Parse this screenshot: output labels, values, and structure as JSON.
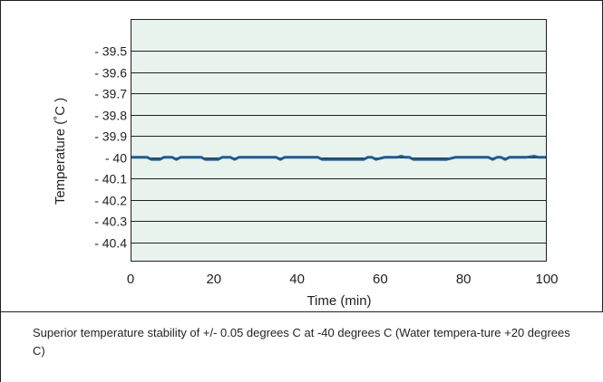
{
  "chart_data": {
    "type": "line",
    "title": "",
    "xlabel": "Time (min)",
    "ylabel": "Temperature (˚C )",
    "xlim": [
      0,
      100
    ],
    "ylim": [
      -40.5,
      -39.4
    ],
    "y_reversed": true,
    "x_ticks": [
      "0",
      "20",
      "40",
      "60",
      "80",
      "100"
    ],
    "y_ticks": [
      {
        "value": -39.5,
        "label": "- 39.5"
      },
      {
        "value": -39.6,
        "label": "- 39.6"
      },
      {
        "value": -39.7,
        "label": "- 39.7"
      },
      {
        "value": -39.8,
        "label": "- 39.8"
      },
      {
        "value": -39.9,
        "label": "- 39.9"
      },
      {
        "value": -40.0,
        "label": "- 40"
      },
      {
        "value": -40.1,
        "label": "- 40.1"
      },
      {
        "value": -40.2,
        "label": "- 40.2"
      },
      {
        "value": -40.3,
        "label": "- 40.3"
      },
      {
        "value": -40.4,
        "label": "- 40.4"
      }
    ],
    "grid": true,
    "legend": "none",
    "plot_background": "#e8f3ee",
    "series": [
      {
        "color": "#1f5b8f",
        "x": [
          0,
          4,
          5,
          7,
          8,
          10,
          11,
          12,
          13,
          17,
          18,
          21,
          22,
          24,
          25,
          26,
          27,
          35,
          36,
          37,
          45,
          46,
          56,
          57,
          58,
          59,
          61,
          64,
          65,
          66,
          67,
          68,
          72,
          76,
          78,
          79,
          86,
          87,
          88,
          89,
          90,
          91,
          95,
          97,
          98,
          100
        ],
        "y": [
          -40.0,
          -40.0,
          -40.01,
          -40.01,
          -40.0,
          -40.0,
          -40.01,
          -40.0,
          -40.0,
          -40.0,
          -40.01,
          -40.01,
          -40.0,
          -40.0,
          -40.01,
          -40.0,
          -40.0,
          -40.0,
          -40.01,
          -40.0,
          -40.0,
          -40.01,
          -40.01,
          -40.0,
          -40.0,
          -40.01,
          -40.0,
          -40.0,
          -39.995,
          -40.0,
          -40.0,
          -40.01,
          -40.01,
          -40.01,
          -40.0,
          -40.0,
          -40.0,
          -40.01,
          -40.0,
          -40.0,
          -40.01,
          -40.0,
          -40.0,
          -39.995,
          -40.0,
          -40.0
        ]
      }
    ]
  },
  "caption": "Superior temperature stability of +/- 0.05 degrees C at -40 degrees C (Water tempera-ture +20 degrees C)"
}
